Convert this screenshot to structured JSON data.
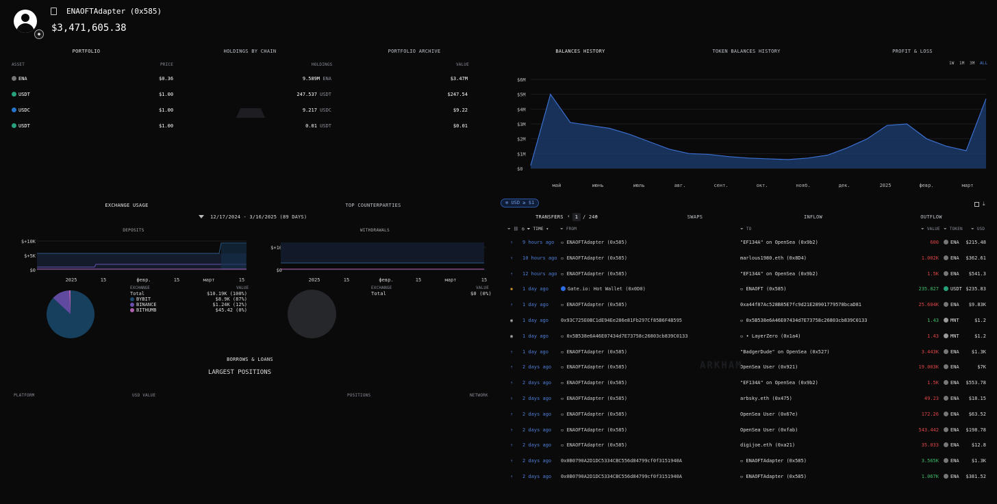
{
  "profile": {
    "name": "ENAOFTAdapter (0x585)",
    "value": "$3,471,605.38"
  },
  "portfolio": {
    "tabs": [
      "PORTFOLIO",
      "HOLDINGS BY CHAIN",
      "PORTFOLIO ARCHIVE"
    ],
    "columns": [
      "ASSET",
      "PRICE",
      "HOLDINGS",
      "VALUE"
    ],
    "rows": [
      {
        "asset": "ENA",
        "price": "$0.36",
        "holdings": "9.589M",
        "unit": "ENA",
        "value": "$3.47M",
        "color": "#777"
      },
      {
        "asset": "USDT",
        "price": "$1.00",
        "holdings": "247.537",
        "unit": "USDT",
        "value": "$247.54",
        "color": "#26a17b"
      },
      {
        "asset": "USDC",
        "price": "$1.00",
        "holdings": "9.217",
        "unit": "USDC",
        "value": "$9.22",
        "color": "#2775ca"
      },
      {
        "asset": "USDT",
        "price": "$1.00",
        "holdings": "0.01",
        "unit": "USDT",
        "value": "$0.01",
        "color": "#26a17b"
      }
    ]
  },
  "history": {
    "tabs": [
      "BALANCES HISTORY",
      "TOKEN BALANCES HISTORY",
      "PROFIT & LOSS"
    ],
    "ranges": [
      "1W",
      "1M",
      "3M",
      "ALL"
    ]
  },
  "chart_data": {
    "type": "area",
    "y_ticks": [
      "$6M",
      "$5M",
      "$4M",
      "$3M",
      "$2M",
      "$1M",
      "$0"
    ],
    "x_ticks": [
      "май",
      "июнь",
      "июль",
      "авг.",
      "сент.",
      "окт.",
      "нояб.",
      "дек.",
      "2025",
      "февр.",
      "март"
    ],
    "ylim": [
      0,
      6
    ],
    "x": [
      0,
      0.5,
      1,
      1.5,
      2,
      2.5,
      3,
      3.5,
      4,
      4.5,
      5,
      5.5,
      6,
      6.5,
      7,
      7.5,
      8,
      8.5,
      9,
      9.5,
      10,
      10.5,
      11,
      11.5
    ],
    "values": [
      0.2,
      5.0,
      3.1,
      2.9,
      2.7,
      2.3,
      1.8,
      1.3,
      1.0,
      0.95,
      0.8,
      0.7,
      0.65,
      0.6,
      0.7,
      0.9,
      1.4,
      2.0,
      2.9,
      3.0,
      2.0,
      1.5,
      1.2,
      4.7
    ]
  },
  "exchange": {
    "title": "EXCHANGE USAGE",
    "date_range": "12/17/2024 - 3/16/2025  (89 DAYS)",
    "deposits": {
      "title": "DEPOSITS",
      "y_ticks": [
        "$+10K",
        "$+5K",
        "$0"
      ],
      "x_ticks": [
        "2025",
        "15",
        "февр.",
        "15",
        "март",
        "15"
      ],
      "legend_head": [
        "EXCHANGE",
        "VALUE"
      ],
      "rows": [
        {
          "name": "Total",
          "value": "$10.19K (100%)",
          "color": ""
        },
        {
          "name": "BYBIT",
          "value": "$8.9K (87%)",
          "color": "#1f4a6e"
        },
        {
          "name": "BINANCE",
          "value": "$1.24K (12%)",
          "color": "#6a4fb0"
        },
        {
          "name": "BITHUMB",
          "value": "$45.42 (0%)",
          "color": "#b060b0"
        }
      ],
      "pie": [
        87,
        12,
        1
      ]
    },
    "withdrawals": {
      "title": "WITHDRAWALS",
      "y_ticks": [
        "$+10",
        "$0"
      ],
      "x_ticks": [
        "2025",
        "15",
        "февр.",
        "15",
        "март",
        "15"
      ],
      "legend_head": [
        "EXCHANGE",
        "VALUE"
      ],
      "rows": [
        {
          "name": "Total",
          "value": "$0 (0%)"
        }
      ]
    }
  },
  "counterparties": {
    "title": "TOP COUNTERPARTIES"
  },
  "borrows": {
    "title": "BORROWS & LOANS",
    "subtitle": "LARGEST POSITIONS",
    "columns": [
      "PLATFORM",
      "USD VALUE",
      "POSITIONS",
      "NETWORK"
    ]
  },
  "transfers": {
    "filter": "USD ≥ $1",
    "tabs": [
      "TRANSFERS",
      "SWAPS",
      "INFLOW",
      "OUTFLOW"
    ],
    "page": "1",
    "pages": "/ 246",
    "columns": [
      "TIME",
      "FROM",
      "TO",
      "VALUE",
      "TOKEN",
      "USD"
    ],
    "rows": [
      {
        "time": "9 hours ago",
        "from": "ENAOFTAdapter (0x585)",
        "to": "\"EF134A\" on OpenSea (0x9b2)",
        "value": "600",
        "dir": "out",
        "token": "ENA",
        "usd": "$215.48"
      },
      {
        "time": "10 hours ago",
        "from": "ENAOFTAdapter (0x585)",
        "to": "marlous1980.eth (0x8D4)",
        "value": "1.002K",
        "dir": "out",
        "token": "ENA",
        "usd": "$362.61"
      },
      {
        "time": "12 hours ago",
        "from": "ENAOFTAdapter (0x585)",
        "to": "\"EF134A\" on OpenSea (0x9b2)",
        "value": "1.5K",
        "dir": "out",
        "token": "ENA",
        "usd": "$541.3"
      },
      {
        "time": "1 day ago",
        "from": "Gate.io: Hot Wallet (0x0D0)",
        "to": "ENAOFT (0x585)",
        "value": "235.827",
        "dir": "in",
        "token": "USDT",
        "usd": "$235.83"
      },
      {
        "time": "1 day ago",
        "from": "ENAOFTAdapter (0x585)",
        "to": "0xa44f87Ac528B85E7fc9d21E28901779578bcaD81",
        "value": "25.604K",
        "dir": "out",
        "token": "ENA",
        "usd": "$9.83K"
      },
      {
        "time": "1 day ago",
        "from": "0x93C725E0BC1dE94Ee286e81Fb297Cf85B6F4B595",
        "to": "0x5B538e6A46E07434d7E73758c26803cb839C0133",
        "value": "1.43",
        "dir": "in",
        "token": "MNT",
        "usd": "$1.2"
      },
      {
        "time": "1 day ago",
        "from": "0x5B538e6A46E07434d7E73758c26803cb839C0133",
        "to": "• LayerZero (0x1a4)",
        "value": "1.43",
        "dir": "out",
        "token": "MNT",
        "usd": "$1.2"
      },
      {
        "time": "1 day ago",
        "from": "ENAOFTAdapter (0x585)",
        "to": "\"BadgerDude\" on OpenSea (0x527)",
        "value": "3.443K",
        "dir": "out",
        "token": "ENA",
        "usd": "$1.3K"
      },
      {
        "time": "2 days ago",
        "from": "ENAOFTAdapter (0x585)",
        "to": "OpenSea User (0x921)",
        "value": "19.003K",
        "dir": "out",
        "token": "ENA",
        "usd": "$7K"
      },
      {
        "time": "2 days ago",
        "from": "ENAOFTAdapter (0x585)",
        "to": "\"EF134A\" on OpenSea (0x9b2)",
        "value": "1.5K",
        "dir": "out",
        "token": "ENA",
        "usd": "$553.78"
      },
      {
        "time": "2 days ago",
        "from": "ENAOFTAdapter (0x585)",
        "to": "arbsky.eth (0x475)",
        "value": "49.23",
        "dir": "out",
        "token": "ENA",
        "usd": "$18.15"
      },
      {
        "time": "2 days ago",
        "from": "ENAOFTAdapter (0x585)",
        "to": "OpenSea User (0x67e)",
        "value": "172.26",
        "dir": "out",
        "token": "ENA",
        "usd": "$63.52"
      },
      {
        "time": "2 days ago",
        "from": "ENAOFTAdapter (0x585)",
        "to": "OpenSea User (0xfab)",
        "value": "543.442",
        "dir": "out",
        "token": "ENA",
        "usd": "$198.78"
      },
      {
        "time": "2 days ago",
        "from": "ENAOFTAdapter (0x585)",
        "to": "digijoe.eth (0xa21)",
        "value": "35.033",
        "dir": "out",
        "token": "ENA",
        "usd": "$12.8"
      },
      {
        "time": "2 days ago",
        "from": "0x0B0790A2D1DC5334CBC556d84799cf0f3151940A",
        "to": "ENAOFTAdapter (0x585)",
        "value": "3.565K",
        "dir": "in",
        "token": "ENA",
        "usd": "$1.3K"
      },
      {
        "time": "2 days ago",
        "from": "0x0B0790A2D1DC5334CBC556d84799cf0f3151940A",
        "to": "ENAOFTAdapter (0x585)",
        "value": "1.067K",
        "dir": "in",
        "token": "ENA",
        "usd": "$381.52"
      }
    ]
  }
}
